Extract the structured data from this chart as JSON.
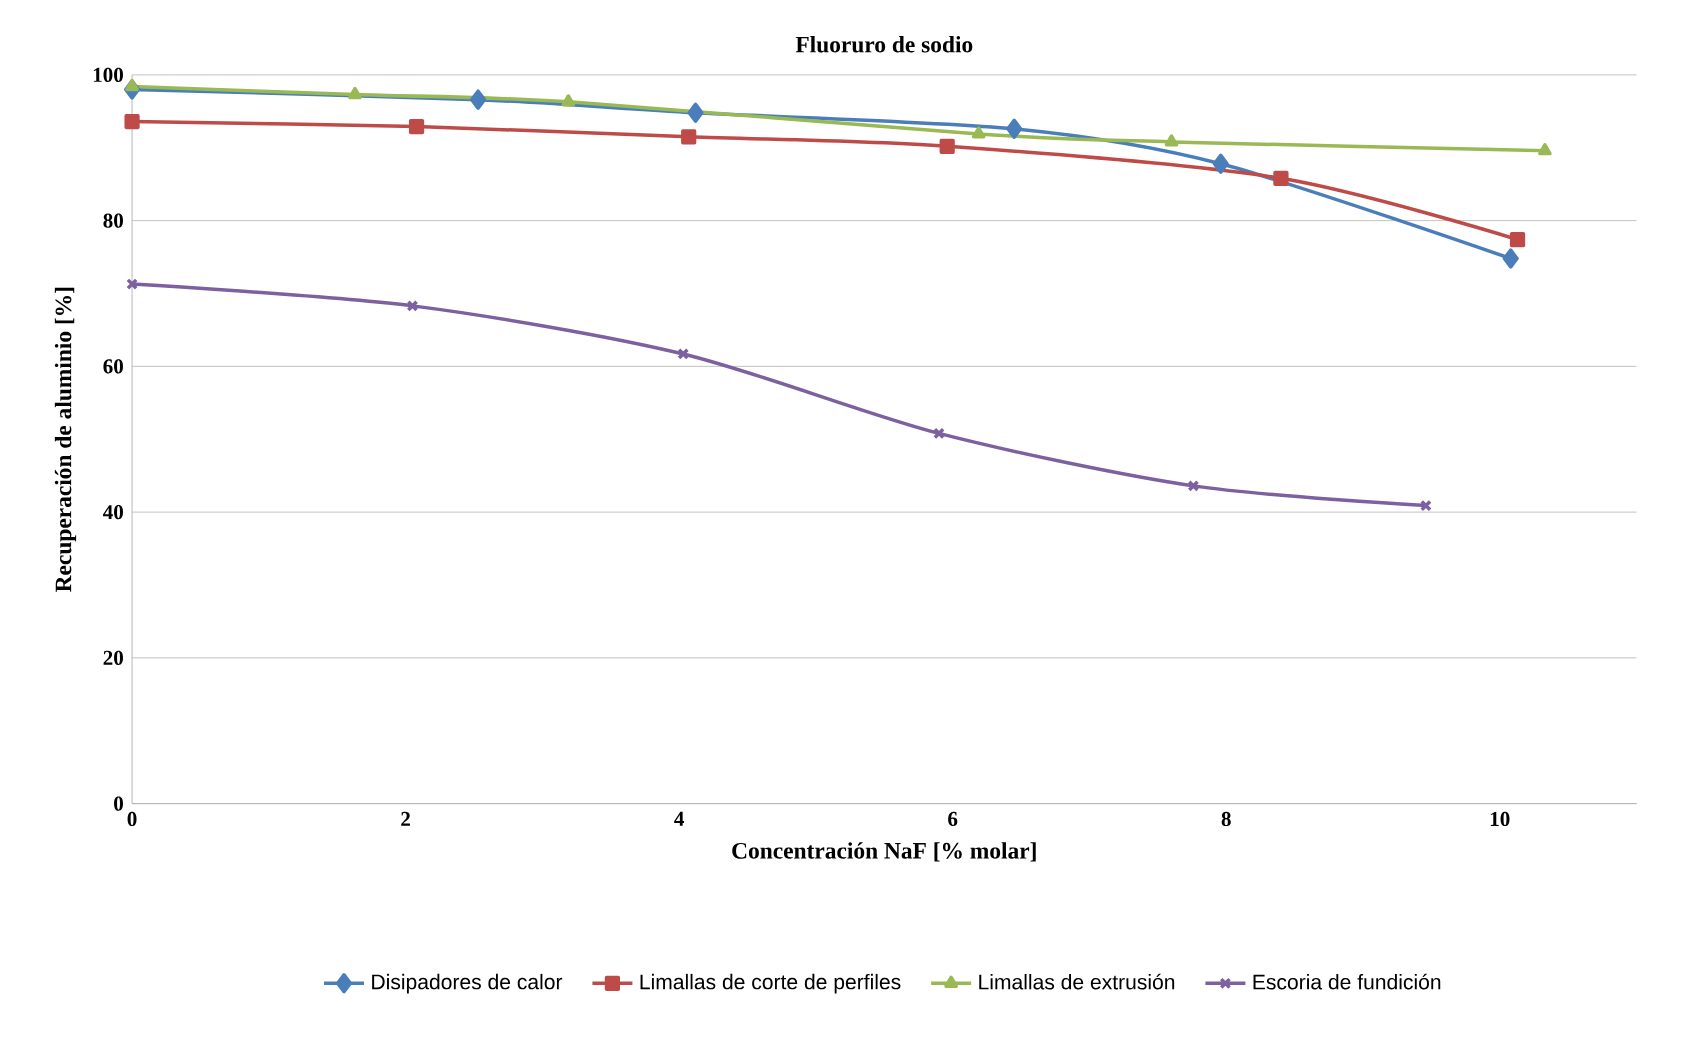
{
  "chart_data": {
    "type": "line",
    "title": "Fluoruro de sodio",
    "xlabel": "Concentración NaF [% molar]",
    "ylabel": "Recuperación de aluminio [%]",
    "xlim": [
      0,
      11
    ],
    "xticks": [
      0,
      2,
      4,
      6,
      8,
      10
    ],
    "ylim": [
      0,
      100
    ],
    "yticks": [
      0,
      20,
      40,
      60,
      80,
      100
    ],
    "grid": "y",
    "legend": "bottom",
    "series": [
      {
        "name": "Disipadores de calor",
        "color": "#4a7ebb",
        "marker": "diamond",
        "x": [
          0,
          2.53,
          4.12,
          6.45,
          7.96,
          10.08
        ],
        "values": [
          98,
          96.6,
          94.8,
          92.6,
          87.8,
          74.8
        ]
      },
      {
        "name": "Limallas de corte de perfiles",
        "color": "#be4b48",
        "marker": "square",
        "x": [
          0,
          2.08,
          4.07,
          5.96,
          8.4,
          10.13
        ],
        "values": [
          93.6,
          92.9,
          91.5,
          90.2,
          85.8,
          77.4
        ]
      },
      {
        "name": "Limallas de extrusión",
        "color": "#98b954",
        "marker": "triangle",
        "x": [
          0,
          1.63,
          3.19,
          6.19,
          7.6,
          10.33
        ],
        "values": [
          98.4,
          97.3,
          96.3,
          91.9,
          90.8,
          89.6
        ]
      },
      {
        "name": "Escoria de fundición",
        "color": "#7d60a0",
        "marker": "cross",
        "x": [
          0,
          2.05,
          4.03,
          5.9,
          7.76,
          9.46
        ],
        "values": [
          71.3,
          68.3,
          61.7,
          50.8,
          43.6,
          40.9
        ]
      }
    ]
  }
}
